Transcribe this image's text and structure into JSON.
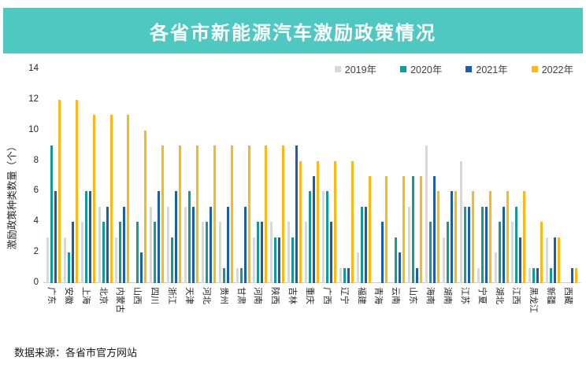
{
  "banner": {
    "bg_color": "#4FC8C2",
    "text_color": "#ffffff"
  },
  "footer": {
    "source": "数据来源：各省市官方网站"
  },
  "chart_data": {
    "type": "bar",
    "title": "各省市新能源汽车激励政策情况",
    "ylabel": "激励政策种类数量（个）",
    "xlabel": "",
    "ylim": [
      0,
      14
    ],
    "yticks": [
      0,
      2,
      4,
      6,
      8,
      10,
      12,
      14
    ],
    "grid": false,
    "legend_position": "top-right",
    "categories": [
      "广东",
      "安徽",
      "上海",
      "北京",
      "内蒙古",
      "山西",
      "四川",
      "浙江",
      "天津",
      "河北",
      "贵州",
      "甘肃",
      "河南",
      "陕西",
      "吉林",
      "重庆",
      "广西",
      "辽宁",
      "福建",
      "青海",
      "云南",
      "山东",
      "海南",
      "湖南",
      "江苏",
      "宁夏",
      "湖北",
      "江西",
      "黑龙江",
      "新疆",
      "西藏"
    ],
    "series": [
      {
        "name": "2019年",
        "color": "#D8D8D8",
        "values": [
          3,
          3,
          4,
          5,
          3,
          0,
          5,
          5,
          5,
          4,
          4,
          1,
          3,
          4,
          4,
          4,
          6,
          1,
          2,
          0,
          0,
          5,
          9,
          3,
          8,
          1,
          2,
          4,
          1,
          3,
          0
        ]
      },
      {
        "name": "2020年",
        "color": "#129A9A",
        "values": [
          9,
          2,
          6,
          4,
          4,
          4,
          4,
          3,
          6,
          4,
          1,
          1,
          4,
          3,
          3,
          6,
          6,
          1,
          5,
          0,
          3,
          7,
          4,
          4,
          5,
          5,
          4,
          5,
          1,
          1,
          0
        ]
      },
      {
        "name": "2021年",
        "color": "#1B5EAC",
        "values": [
          6,
          4,
          6,
          5,
          5,
          2,
          6,
          6,
          5,
          5,
          5,
          5,
          4,
          3,
          9,
          7,
          4,
          1,
          5,
          4,
          2,
          1,
          7,
          6,
          5,
          5,
          5,
          3,
          1,
          3,
          1
        ]
      },
      {
        "name": "2022年",
        "color": "#FBB817",
        "values": [
          12,
          12,
          11,
          11,
          11,
          10,
          9,
          9,
          9,
          9,
          9,
          9,
          9,
          9,
          8,
          8,
          8,
          8,
          7,
          7,
          7,
          7,
          6,
          6,
          6,
          6,
          6,
          6,
          4,
          3,
          1
        ]
      }
    ],
    "source": "数据来源：各省市官方网站"
  }
}
